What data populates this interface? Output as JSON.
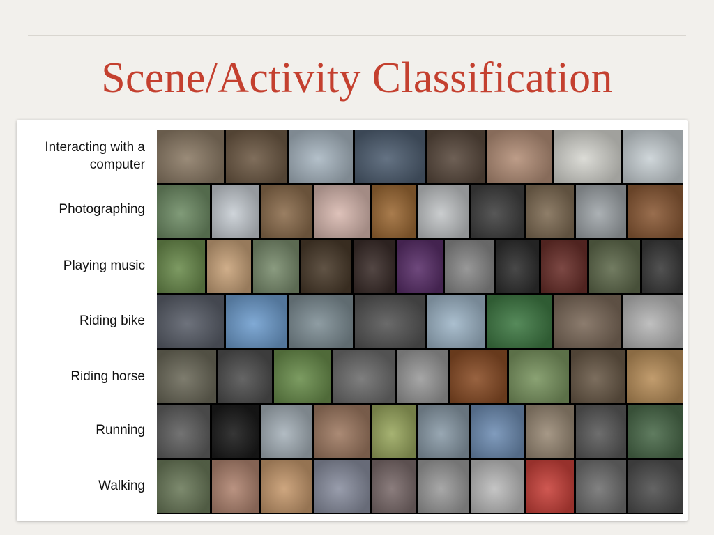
{
  "slide": {
    "title": "Scene/Activity Classification"
  },
  "rows": [
    {
      "label_lines": [
        "Interacting with a",
        "computer"
      ],
      "tiles": [
        {
          "color": "#8c7b66"
        },
        {
          "color": "#6e5a45"
        },
        {
          "color": "#a9b7c2"
        },
        {
          "color": "#4f5f72"
        },
        {
          "color": "#5a4a3e"
        },
        {
          "color": "#b48f78"
        },
        {
          "color": "#d7d7d1"
        },
        {
          "color": "#c9d1d5"
        }
      ]
    },
    {
      "label_lines": [
        "Photographing"
      ],
      "tiles": [
        {
          "color": "#6f8d66"
        },
        {
          "color": "#c8ced4"
        },
        {
          "color": "#8c6d4d"
        },
        {
          "color": "#d9b9b0"
        },
        {
          "color": "#9d6a35"
        },
        {
          "color": "#c3c6c8"
        },
        {
          "color": "#404040"
        },
        {
          "color": "#7f6c54"
        },
        {
          "color": "#a0a6aa"
        },
        {
          "color": "#8b5a36"
        }
      ]
    },
    {
      "label_lines": [
        "Playing music"
      ],
      "tiles": [
        {
          "color": "#6b8c4d"
        },
        {
          "color": "#c9a37a"
        },
        {
          "color": "#7a8d6e"
        },
        {
          "color": "#4a3b2b"
        },
        {
          "color": "#3b2d2a"
        },
        {
          "color": "#5a2f6a"
        },
        {
          "color": "#8a8a8a"
        },
        {
          "color": "#2f2f2f"
        },
        {
          "color": "#6a2f2a"
        },
        {
          "color": "#5f6a4c"
        },
        {
          "color": "#3a3a3a"
        }
      ]
    },
    {
      "label_lines": [
        "Riding bike"
      ],
      "tiles": [
        {
          "color": "#5a5f6a"
        },
        {
          "color": "#6f9ecf"
        },
        {
          "color": "#7f8f96"
        },
        {
          "color": "#565656"
        },
        {
          "color": "#9fb6c8"
        },
        {
          "color": "#3f7a44"
        },
        {
          "color": "#7c6a5a"
        },
        {
          "color": "#b7b7b7"
        }
      ]
    },
    {
      "label_lines": [
        "Riding horse"
      ],
      "tiles": [
        {
          "color": "#6c6a5a"
        },
        {
          "color": "#505050"
        },
        {
          "color": "#6a8e4c"
        },
        {
          "color": "#6d6d6d"
        },
        {
          "color": "#9a9a9a"
        },
        {
          "color": "#8a4d26"
        },
        {
          "color": "#7a9560"
        },
        {
          "color": "#6a5a48"
        },
        {
          "color": "#b98f5a"
        }
      ]
    },
    {
      "label_lines": [
        "Running"
      ],
      "tiles": [
        {
          "color": "#606060"
        },
        {
          "color": "#1a1a1a"
        },
        {
          "color": "#a7b2ba"
        },
        {
          "color": "#9f7a62"
        },
        {
          "color": "#9aa85f"
        },
        {
          "color": "#8a9ba8"
        },
        {
          "color": "#6f8eb4"
        },
        {
          "color": "#9a8a76"
        },
        {
          "color": "#5a5a5a"
        },
        {
          "color": "#4a6a4a"
        }
      ]
    },
    {
      "label_lines": [
        "Walking"
      ],
      "tiles": [
        {
          "color": "#6b7a5a"
        },
        {
          "color": "#b08470"
        },
        {
          "color": "#c79a6e"
        },
        {
          "color": "#8a8fa0"
        },
        {
          "color": "#7b6b6b"
        },
        {
          "color": "#9c9c9c"
        },
        {
          "color": "#bdbdbd"
        },
        {
          "color": "#c9413a"
        },
        {
          "color": "#707070"
        },
        {
          "color": "#4f4f4f"
        }
      ]
    }
  ]
}
